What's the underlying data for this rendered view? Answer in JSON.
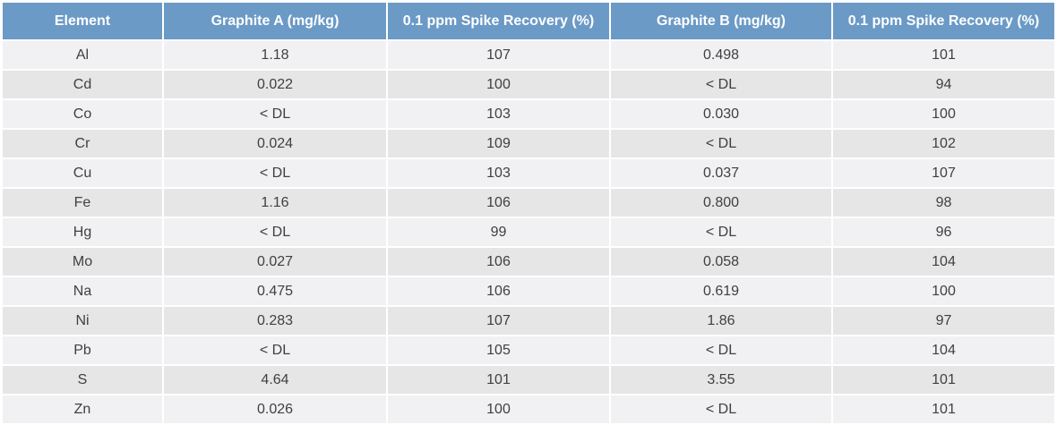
{
  "table": {
    "headers": [
      "Element",
      "Graphite A (mg/kg)",
      "0.1 ppm Spike Recovery (%)",
      "Graphite B (mg/kg)",
      "0.1 ppm Spike Recovery (%)"
    ],
    "rows": [
      [
        "Al",
        "1.18",
        "107",
        "0.498",
        "101"
      ],
      [
        "Cd",
        "0.022",
        "100",
        "< DL",
        "94"
      ],
      [
        "Co",
        "< DL",
        "103",
        "0.030",
        "100"
      ],
      [
        "Cr",
        "0.024",
        "109",
        "< DL",
        "102"
      ],
      [
        "Cu",
        "< DL",
        "103",
        "0.037",
        "107"
      ],
      [
        "Fe",
        "1.16",
        "106",
        "0.800",
        "98"
      ],
      [
        "Hg",
        "< DL",
        "99",
        "< DL",
        "96"
      ],
      [
        "Mo",
        "0.027",
        "106",
        "0.058",
        "104"
      ],
      [
        "Na",
        "0.475",
        "106",
        "0.619",
        "100"
      ],
      [
        "Ni",
        "0.283",
        "107",
        "1.86",
        "97"
      ],
      [
        "Pb",
        "< DL",
        "105",
        "< DL",
        "104"
      ],
      [
        "S",
        "4.64",
        "101",
        "3.55",
        "101"
      ],
      [
        "Zn",
        "0.026",
        "100",
        "< DL",
        "101"
      ]
    ]
  },
  "colors": {
    "header_bg": "#6b9ac6",
    "header_text": "#ffffff",
    "row_odd_bg": "#f1f1f3",
    "row_even_bg": "#e6e6e6",
    "cell_text": "#404040"
  }
}
